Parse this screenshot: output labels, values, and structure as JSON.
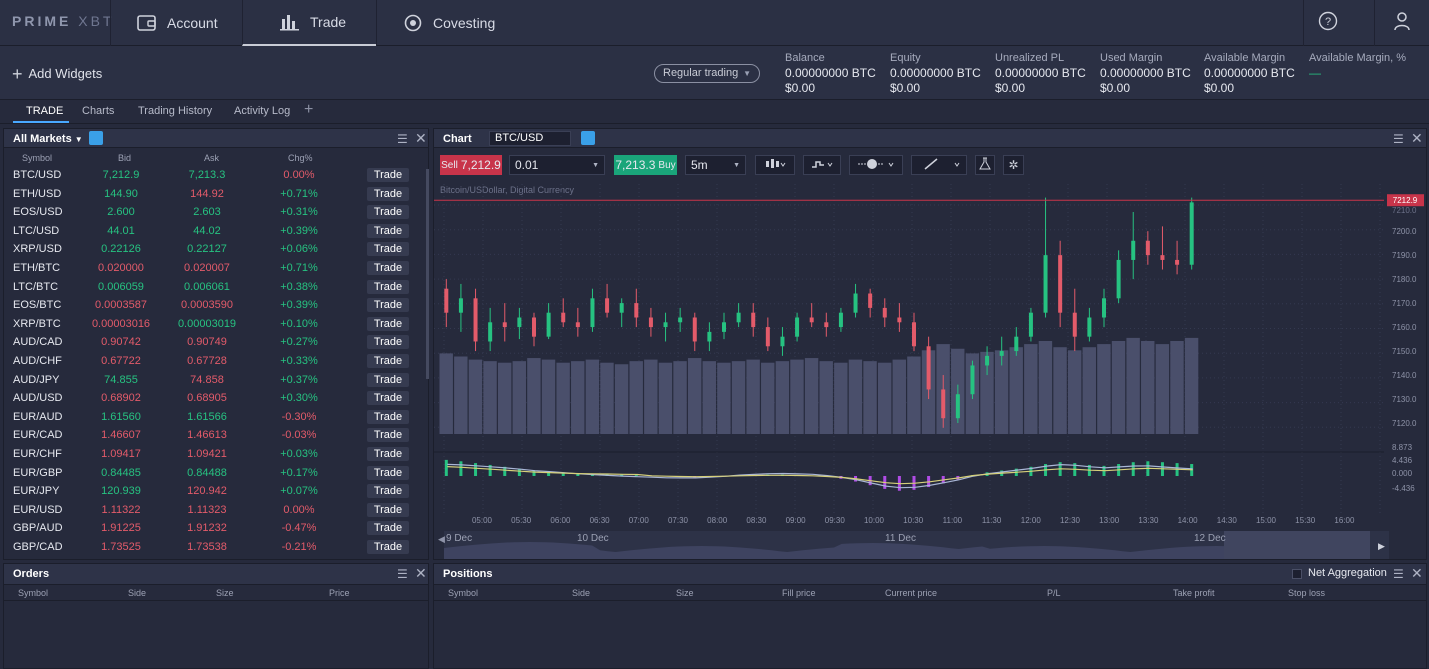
{
  "app": {
    "logo_main": "PRIME",
    "logo_sub": "XBT"
  },
  "nav": {
    "account": "Account",
    "trade": "Trade",
    "covesting": "Covesting"
  },
  "infobar": {
    "add_widgets": "Add Widgets",
    "trading_mode": "Regular trading",
    "stats": [
      {
        "label": "Balance",
        "btc": "0.00000000 BTC",
        "usd": "$0.00"
      },
      {
        "label": "Equity",
        "btc": "0.00000000 BTC",
        "usd": "$0.00"
      },
      {
        "label": "Unrealized PL",
        "btc": "0.00000000 BTC",
        "usd": "$0.00"
      },
      {
        "label": "Used Margin",
        "btc": "0.00000000 BTC",
        "usd": "$0.00"
      },
      {
        "label": "Available Margin",
        "btc": "0.00000000 BTC",
        "usd": "$0.00"
      },
      {
        "label": "Available Margin, %",
        "btc": "—",
        "usd": ""
      }
    ]
  },
  "subtabs": [
    "TRADE",
    "Charts",
    "Trading History",
    "Activity Log"
  ],
  "markets": {
    "title": "All Markets",
    "columns": [
      "Symbol",
      "Bid",
      "Ask",
      "Chg%"
    ],
    "trade_label": "Trade",
    "rows": [
      {
        "symbol": "BTC/USD",
        "bid": "7,212.9",
        "ask": "7,213.3",
        "chg": "0.00%",
        "bidc": "g",
        "askc": "g",
        "chgc": "r"
      },
      {
        "symbol": "ETH/USD",
        "bid": "144.90",
        "ask": "144.92",
        "chg": "+0.71%",
        "bidc": "g",
        "askc": "r",
        "chgc": "g"
      },
      {
        "symbol": "EOS/USD",
        "bid": "2.600",
        "ask": "2.603",
        "chg": "+0.31%",
        "bidc": "g",
        "askc": "g",
        "chgc": "g"
      },
      {
        "symbol": "LTC/USD",
        "bid": "44.01",
        "ask": "44.02",
        "chg": "+0.39%",
        "bidc": "g",
        "askc": "g",
        "chgc": "g"
      },
      {
        "symbol": "XRP/USD",
        "bid": "0.22126",
        "ask": "0.22127",
        "chg": "+0.06%",
        "bidc": "g",
        "askc": "g",
        "chgc": "g"
      },
      {
        "symbol": "ETH/BTC",
        "bid": "0.020000",
        "ask": "0.020007",
        "chg": "+0.71%",
        "bidc": "r",
        "askc": "r",
        "chgc": "g"
      },
      {
        "symbol": "LTC/BTC",
        "bid": "0.006059",
        "ask": "0.006061",
        "chg": "+0.38%",
        "bidc": "g",
        "askc": "g",
        "chgc": "g"
      },
      {
        "symbol": "EOS/BTC",
        "bid": "0.0003587",
        "ask": "0.0003590",
        "chg": "+0.39%",
        "bidc": "r",
        "askc": "r",
        "chgc": "g"
      },
      {
        "symbol": "XRP/BTC",
        "bid": "0.00003016",
        "ask": "0.00003019",
        "chg": "+0.10%",
        "bidc": "r",
        "askc": "g",
        "chgc": "g"
      },
      {
        "symbol": "AUD/CAD",
        "bid": "0.90742",
        "ask": "0.90749",
        "chg": "+0.27%",
        "bidc": "r",
        "askc": "r",
        "chgc": "g"
      },
      {
        "symbol": "AUD/CHF",
        "bid": "0.67722",
        "ask": "0.67728",
        "chg": "+0.33%",
        "bidc": "r",
        "askc": "r",
        "chgc": "g"
      },
      {
        "symbol": "AUD/JPY",
        "bid": "74.855",
        "ask": "74.858",
        "chg": "+0.37%",
        "bidc": "g",
        "askc": "r",
        "chgc": "g"
      },
      {
        "symbol": "AUD/USD",
        "bid": "0.68902",
        "ask": "0.68905",
        "chg": "+0.30%",
        "bidc": "r",
        "askc": "r",
        "chgc": "g"
      },
      {
        "symbol": "EUR/AUD",
        "bid": "1.61560",
        "ask": "1.61566",
        "chg": "-0.30%",
        "bidc": "g",
        "askc": "g",
        "chgc": "r"
      },
      {
        "symbol": "EUR/CAD",
        "bid": "1.46607",
        "ask": "1.46613",
        "chg": "-0.03%",
        "bidc": "r",
        "askc": "r",
        "chgc": "r"
      },
      {
        "symbol": "EUR/CHF",
        "bid": "1.09417",
        "ask": "1.09421",
        "chg": "+0.03%",
        "bidc": "r",
        "askc": "r",
        "chgc": "g"
      },
      {
        "symbol": "EUR/GBP",
        "bid": "0.84485",
        "ask": "0.84488",
        "chg": "+0.17%",
        "bidc": "g",
        "askc": "g",
        "chgc": "g"
      },
      {
        "symbol": "EUR/JPY",
        "bid": "120.939",
        "ask": "120.942",
        "chg": "+0.07%",
        "bidc": "g",
        "askc": "r",
        "chgc": "g"
      },
      {
        "symbol": "EUR/USD",
        "bid": "1.11322",
        "ask": "1.11323",
        "chg": "0.00%",
        "bidc": "r",
        "askc": "r",
        "chgc": "r"
      },
      {
        "symbol": "GBP/AUD",
        "bid": "1.91225",
        "ask": "1.91232",
        "chg": "-0.47%",
        "bidc": "r",
        "askc": "r",
        "chgc": "r"
      },
      {
        "symbol": "GBP/CAD",
        "bid": "1.73525",
        "ask": "1.73538",
        "chg": "-0.21%",
        "bidc": "r",
        "askc": "r",
        "chgc": "r"
      }
    ]
  },
  "orders": {
    "title": "Orders",
    "columns": [
      "Symbol",
      "Side",
      "Size",
      "Price"
    ]
  },
  "chart": {
    "title": "Chart",
    "symbol": "BTC/USD",
    "sell_label": "Sell",
    "sell_price": "7,212.9",
    "qty": "0.01",
    "buy_price": "7,213.3",
    "buy_label": "Buy",
    "interval": "5m",
    "subtitle": "Bitcoin/USDollar, Digital Currency",
    "price_tag": "7212.9",
    "price_label_top": "7210.0",
    "price_axis": [
      "7200.0",
      "7190.0",
      "7180.0",
      "7170.0",
      "7160.0",
      "7150.0",
      "7140.0",
      "7130.0",
      "7120.0"
    ],
    "osc_axis": [
      "8.873",
      "4.436",
      "0.000",
      "-4.436"
    ],
    "time_axis": [
      "05:00",
      "05:30",
      "06:00",
      "06:30",
      "07:00",
      "07:30",
      "08:00",
      "08:30",
      "09:00",
      "09:30",
      "10:00",
      "10:30",
      "11:00",
      "11:30",
      "12:00",
      "12:30",
      "13:00",
      "13:30",
      "14:00",
      "14:30",
      "15:00",
      "15:30",
      "16:00"
    ],
    "nav_dates": [
      "9 Dec",
      "10 Dec",
      "11 Dec",
      "12 Dec"
    ],
    "colors": {
      "up": "#26c281",
      "down": "#e35b6a",
      "volume": "#4a4f6b",
      "macd1": "#a9b6d6",
      "macd2": "#d6d07a"
    }
  },
  "chart_data": {
    "type": "candlestick",
    "symbol": "BTC/USD",
    "ylim": [
      7115,
      7218
    ],
    "candles": [
      [
        7176,
        7180,
        7160,
        7166
      ],
      [
        7166,
        7178,
        7158,
        7172
      ],
      [
        7172,
        7176,
        7150,
        7154
      ],
      [
        7154,
        7168,
        7150,
        7162
      ],
      [
        7162,
        7170,
        7154,
        7160
      ],
      [
        7160,
        7168,
        7155,
        7164
      ],
      [
        7164,
        7166,
        7152,
        7156
      ],
      [
        7156,
        7170,
        7155,
        7166
      ],
      [
        7166,
        7172,
        7160,
        7162
      ],
      [
        7162,
        7168,
        7156,
        7160
      ],
      [
        7160,
        7176,
        7158,
        7172
      ],
      [
        7172,
        7178,
        7164,
        7166
      ],
      [
        7166,
        7172,
        7160,
        7170
      ],
      [
        7170,
        7176,
        7160,
        7164
      ],
      [
        7164,
        7168,
        7156,
        7160
      ],
      [
        7160,
        7166,
        7154,
        7162
      ],
      [
        7162,
        7168,
        7158,
        7164
      ],
      [
        7164,
        7166,
        7150,
        7154
      ],
      [
        7154,
        7162,
        7150,
        7158
      ],
      [
        7158,
        7166,
        7155,
        7162
      ],
      [
        7162,
        7170,
        7160,
        7166
      ],
      [
        7166,
        7170,
        7156,
        7160
      ],
      [
        7160,
        7164,
        7150,
        7152
      ],
      [
        7152,
        7160,
        7148,
        7156
      ],
      [
        7156,
        7166,
        7154,
        7164
      ],
      [
        7164,
        7170,
        7160,
        7162
      ],
      [
        7162,
        7166,
        7156,
        7160
      ],
      [
        7160,
        7168,
        7158,
        7166
      ],
      [
        7166,
        7178,
        7164,
        7174
      ],
      [
        7174,
        7176,
        7164,
        7168
      ],
      [
        7168,
        7172,
        7160,
        7164
      ],
      [
        7164,
        7170,
        7158,
        7162
      ],
      [
        7162,
        7166,
        7150,
        7152
      ],
      [
        7152,
        7156,
        7130,
        7134
      ],
      [
        7134,
        7140,
        7118,
        7122
      ],
      [
        7122,
        7136,
        7120,
        7132
      ],
      [
        7132,
        7146,
        7130,
        7144
      ],
      [
        7144,
        7152,
        7140,
        7148
      ],
      [
        7148,
        7156,
        7144,
        7150
      ],
      [
        7150,
        7160,
        7148,
        7156
      ],
      [
        7156,
        7168,
        7154,
        7166
      ],
      [
        7166,
        7214,
        7164,
        7190
      ],
      [
        7190,
        7196,
        7160,
        7166
      ],
      [
        7166,
        7176,
        7150,
        7156
      ],
      [
        7156,
        7168,
        7154,
        7164
      ],
      [
        7164,
        7176,
        7160,
        7172
      ],
      [
        7172,
        7192,
        7170,
        7188
      ],
      [
        7188,
        7208,
        7180,
        7196
      ],
      [
        7196,
        7200,
        7186,
        7190
      ],
      [
        7190,
        7202,
        7184,
        7188
      ],
      [
        7188,
        7196,
        7182,
        7186
      ],
      [
        7186,
        7214,
        7184,
        7212
      ]
    ],
    "volume": [
      52,
      50,
      48,
      47,
      46,
      47,
      49,
      48,
      46,
      47,
      48,
      46,
      45,
      47,
      48,
      46,
      47,
      49,
      47,
      46,
      47,
      48,
      46,
      47,
      48,
      49,
      47,
      46,
      48,
      47,
      46,
      48,
      50,
      54,
      58,
      55,
      52,
      53,
      54,
      56,
      58,
      60,
      56,
      54,
      56,
      58,
      60,
      62,
      60,
      58,
      60,
      62
    ],
    "macd_hist": [
      3.5,
      3.2,
      2.8,
      2.4,
      2.0,
      1.6,
      1.2,
      1.0,
      0.8,
      0.6,
      0.5,
      0.4,
      0.3,
      0.2,
      0.1,
      -0.1,
      -0.2,
      -0.3,
      -0.2,
      -0.1,
      0.1,
      0.2,
      0.3,
      0.3,
      0.2,
      0.1,
      -0.2,
      -0.6,
      -1.2,
      -2.0,
      -2.8,
      -3.2,
      -3.0,
      -2.4,
      -1.6,
      -0.8,
      0.2,
      0.8,
      1.2,
      1.6,
      2.0,
      2.6,
      3.0,
      2.8,
      2.4,
      2.2,
      2.6,
      3.0,
      3.2,
      3.0,
      2.8,
      2.6
    ],
    "x_labels": [
      "05:00",
      "05:30",
      "06:00",
      "06:30",
      "07:00",
      "07:30",
      "08:00",
      "08:30",
      "09:00",
      "09:30",
      "10:00",
      "10:30",
      "11:00",
      "11:30",
      "12:00",
      "12:30",
      "13:00",
      "13:30",
      "14:00",
      "14:30",
      "15:00",
      "15:30",
      "16:00"
    ],
    "last_price": 7212.9
  },
  "positions": {
    "title": "Positions",
    "net_aggregation": "Net Aggregation",
    "columns": [
      "Symbol",
      "Side",
      "Size",
      "Fill price",
      "Current price",
      "P/L",
      "Take profit",
      "Stop loss"
    ]
  }
}
